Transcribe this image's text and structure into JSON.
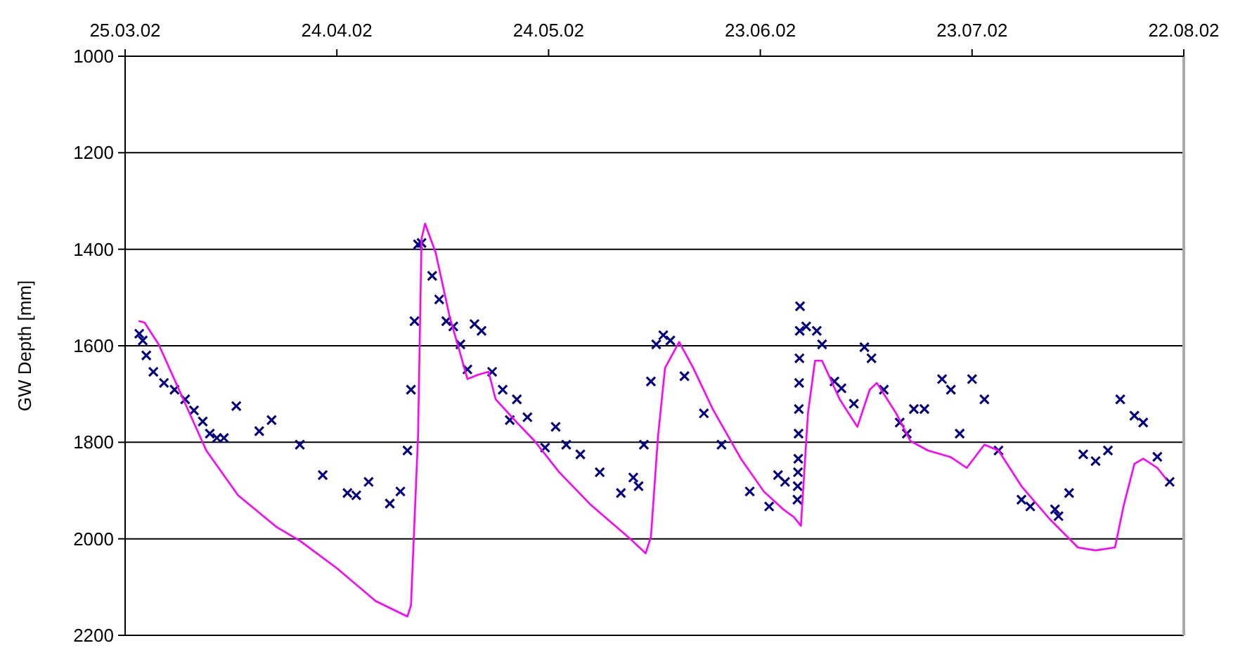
{
  "chart_data": {
    "type": "line",
    "ylabel": "GW Depth [mm]",
    "xlim": [
      "2002-03-25",
      "2002-08-22"
    ],
    "xticks": [
      {
        "value": "2002-03-25",
        "label": "25.03.02"
      },
      {
        "value": "2002-04-24",
        "label": "24.04.02"
      },
      {
        "value": "2002-05-24",
        "label": "24.05.02"
      },
      {
        "value": "2002-06-23",
        "label": "23.06.02"
      },
      {
        "value": "2002-07-23",
        "label": "23.07.02"
      },
      {
        "value": "2002-08-22",
        "label": "22.08.02"
      }
    ],
    "ylim": [
      2200,
      1000
    ],
    "yticks": [
      1000,
      1200,
      1400,
      1600,
      1800,
      2000,
      2200
    ],
    "grid": "y",
    "series": [
      {
        "type": "scatter",
        "marker": "cross",
        "color": "#000080",
        "x": [
          "2002-03-27",
          "2002-03-27T12:00",
          "2002-03-28",
          "2002-03-29",
          "2002-03-30T12:00",
          "2002-04-01",
          "2002-04-02T12:00",
          "2002-04-03T18:00",
          "2002-04-05",
          "2002-04-06",
          "2002-04-07",
          "2002-04-08",
          "2002-04-09T18:00",
          "2002-04-13",
          "2002-04-14T18:00",
          "2002-04-18T18:00",
          "2002-04-22",
          "2002-04-25T12:00",
          "2002-04-26T18:00",
          "2002-04-28T12:00",
          "2002-05-01T12:00",
          "2002-05-03",
          "2002-05-04",
          "2002-05-04T12:00",
          "2002-05-05",
          "2002-05-05T12:00",
          "2002-05-06",
          "2002-05-07T12:00",
          "2002-05-08T12:00",
          "2002-05-09T12:00",
          "2002-05-10T12:00",
          "2002-05-11T12:00",
          "2002-05-12T12:00",
          "2002-05-13T12:00",
          "2002-05-14T12:00",
          "2002-05-16",
          "2002-05-17T12:00",
          "2002-05-18T12:00",
          "2002-05-19T12:00",
          "2002-05-21",
          "2002-05-23T12:00",
          "2002-05-25",
          "2002-05-26T12:00",
          "2002-05-28T12:00",
          "2002-05-31T06:00",
          "2002-06-03T06:00",
          "2002-06-05",
          "2002-06-05T18:00",
          "2002-06-06T12:00",
          "2002-06-07T12:00",
          "2002-06-08T06:00",
          "2002-06-09T06:00",
          "2002-06-10T06:00",
          "2002-06-12T06:00",
          "2002-06-15",
          "2002-06-17T12:00",
          "2002-06-21T12:00",
          "2002-06-24T06:00",
          "2002-06-25T12:00",
          "2002-06-26T12:00",
          "2002-06-28T06:00",
          "2002-06-28T07:00",
          "2002-06-28T08:00",
          "2002-06-28T09:00",
          "2002-06-28T10:00",
          "2002-06-28T11:00",
          "2002-06-28T12:00",
          "2002-06-28T13:00",
          "2002-06-28T14:00",
          "2002-06-28T15:00",
          "2002-06-29T12:00",
          "2002-07-01",
          "2002-07-01T18:00",
          "2002-07-03T12:00",
          "2002-07-04T12:00",
          "2002-07-06T06:00",
          "2002-07-07T18:00",
          "2002-07-08T18:00",
          "2002-07-10T12:00",
          "2002-07-12T18:00",
          "2002-07-13T18:00",
          "2002-07-14T18:00",
          "2002-07-16T06:00",
          "2002-07-18T18:00",
          "2002-07-20",
          "2002-07-21T06:00",
          "2002-07-23",
          "2002-07-24T18:00",
          "2002-07-26T18:00",
          "2002-07-30",
          "2002-07-31T06:00",
          "2002-08-03T18:00",
          "2002-08-04T06:00",
          "2002-08-05T18:00",
          "2002-08-07T18:00",
          "2002-08-09T12:00",
          "2002-08-11T06:00",
          "2002-08-13",
          "2002-08-15",
          "2002-08-16T06:00",
          "2002-08-18T06:00",
          "2002-08-20"
        ],
        "values": [
          1575,
          1589,
          1620,
          1654,
          1677,
          1691,
          1711,
          1734,
          1757,
          1782,
          1791,
          1791,
          1725,
          1777,
          1754,
          1805,
          1868,
          1905,
          1910,
          1882,
          1927,
          1902,
          1817,
          1691,
          1549,
          1390,
          1387,
          1455,
          1504,
          1549,
          1560,
          1597,
          1649,
          1555,
          1569,
          1654,
          1691,
          1754,
          1711,
          1748,
          1811,
          1768,
          1805,
          1825,
          1862,
          1905,
          1873,
          1891,
          1805,
          1674,
          1597,
          1578,
          1589,
          1663,
          1740,
          1805,
          1902,
          1933,
          1868,
          1882,
          1919,
          1891,
          1862,
          1834,
          1782,
          1731,
          1677,
          1626,
          1569,
          1518,
          1560,
          1569,
          1597,
          1674,
          1688,
          1720,
          1603,
          1626,
          1691,
          1759,
          1782,
          1731,
          1731,
          1669,
          1691,
          1782,
          1669,
          1711,
          1817,
          1919,
          1933,
          1939,
          1953,
          1905,
          1825,
          1839,
          1817,
          1711,
          1745,
          1759,
          1830,
          1882
        ]
      },
      {
        "marker": "none",
        "line_style": "solid",
        "color": "#ff00ff",
        "x": [
          "2002-03-27",
          "2002-03-27T18:00",
          "2002-03-29T18:00",
          "2002-04-02T06:00",
          "2002-04-05T12:00",
          "2002-04-10",
          "2002-04-15T12:00",
          "2002-04-18T18:00",
          "2002-04-24",
          "2002-04-29T12:00",
          "2002-05-04",
          "2002-05-04T12:00",
          "2002-05-05T12:00",
          "2002-05-06",
          "2002-05-06T12:00",
          "2002-05-08",
          "2002-05-10",
          "2002-05-11T12:00",
          "2002-05-12T12:00",
          "2002-05-14",
          "2002-05-15T12:00",
          "2002-05-16T12:00",
          "2002-05-19T12:00",
          "2002-05-22",
          "2002-05-25T12:00",
          "2002-05-30",
          "2002-06-04T06:00",
          "2002-06-06T18:00",
          "2002-06-07T12:00",
          "2002-06-08T12:00",
          "2002-06-09T12:00",
          "2002-06-11T12:00",
          "2002-06-13T12:00",
          "2002-06-16T06:00",
          "2002-06-20T06:00",
          "2002-06-23T12:00",
          "2002-06-26T06:00",
          "2002-06-27T18:00",
          "2002-06-28T18:00",
          "2002-06-29T18:00",
          "2002-06-30T18:00",
          "2002-07-01T18:00",
          "2002-07-04T06:00",
          "2002-07-06T18:00",
          "2002-07-08T12:00",
          "2002-07-09T12:00",
          "2002-07-12T06:00",
          "2002-07-14T06:00",
          "2002-07-16T18:00",
          "2002-07-20",
          "2002-07-22T06:00",
          "2002-07-24T18:00",
          "2002-07-26T18:00",
          "2002-07-30",
          "2002-08-03",
          "2002-08-07",
          "2002-08-09T12:00",
          "2002-08-12T06:00",
          "2002-08-13T12:00",
          "2002-08-15",
          "2002-08-16T06:00",
          "2002-08-18T06:00",
          "2002-08-19T12:00"
        ],
        "values": [
          1549,
          1552,
          1597,
          1711,
          1817,
          1910,
          1976,
          2004,
          2061,
          2129,
          2161,
          2138,
          1788,
          1378,
          1347,
          1407,
          1541,
          1617,
          1669,
          1660,
          1654,
          1711,
          1759,
          1797,
          1862,
          1930,
          1996,
          2030,
          1996,
          1788,
          1646,
          1592,
          1646,
          1731,
          1834,
          1902,
          1939,
          1955,
          1973,
          1740,
          1631,
          1631,
          1711,
          1768,
          1691,
          1677,
          1740,
          1797,
          1817,
          1831,
          1853,
          1805,
          1817,
          1891,
          1959,
          2018,
          2024,
          2018,
          1930,
          1845,
          1834,
          1853,
          1876
        ]
      }
    ]
  }
}
